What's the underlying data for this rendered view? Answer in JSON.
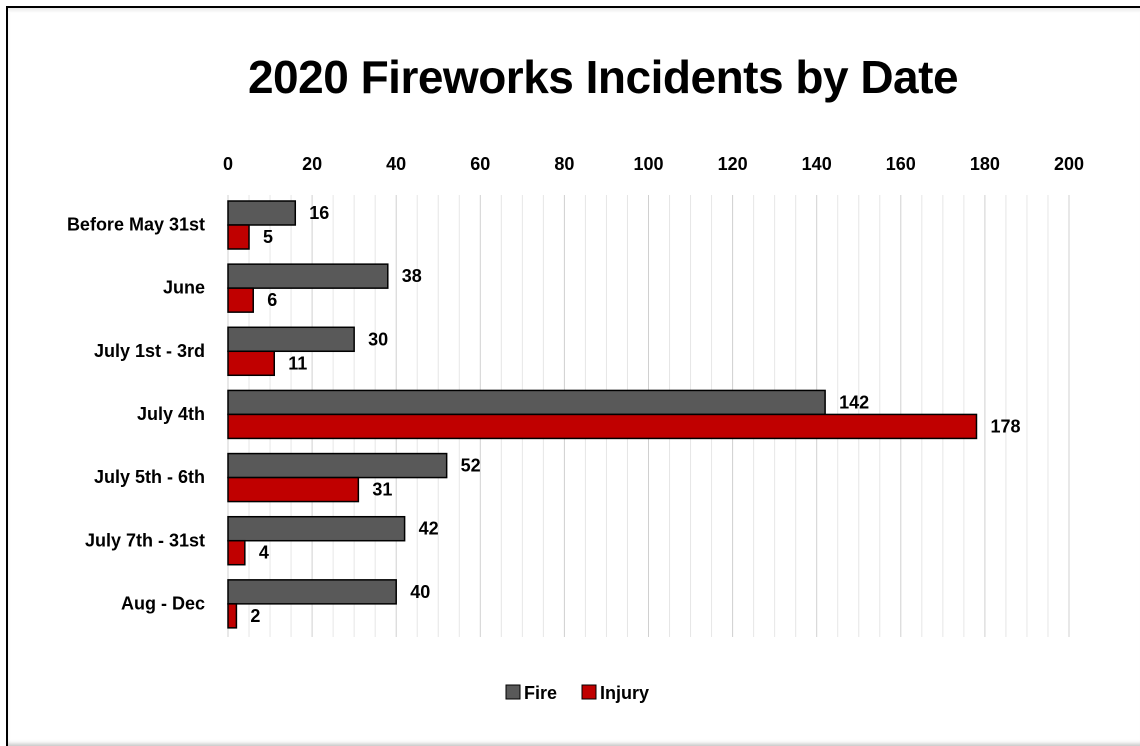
{
  "chart_data": {
    "type": "bar",
    "orientation": "horizontal",
    "title": "2020 Fireworks Incidents by Date",
    "categories": [
      "Before May 31st",
      "June",
      "July 1st - 3rd",
      "July 4th",
      "July 5th - 6th",
      "July 7th - 31st",
      "Aug - Dec"
    ],
    "series": [
      {
        "name": "Fire",
        "values": [
          16,
          38,
          30,
          142,
          52,
          42,
          40
        ],
        "color": "#595959"
      },
      {
        "name": "Injury",
        "values": [
          5,
          6,
          11,
          178,
          31,
          4,
          2
        ],
        "color": "#c00000"
      }
    ],
    "xlim": [
      0,
      200
    ],
    "xticks": [
      0,
      20,
      40,
      60,
      80,
      100,
      120,
      140,
      160,
      180,
      200
    ],
    "xaxis_position": "top",
    "grid": true,
    "legend": "bottom",
    "data_labels": true
  }
}
